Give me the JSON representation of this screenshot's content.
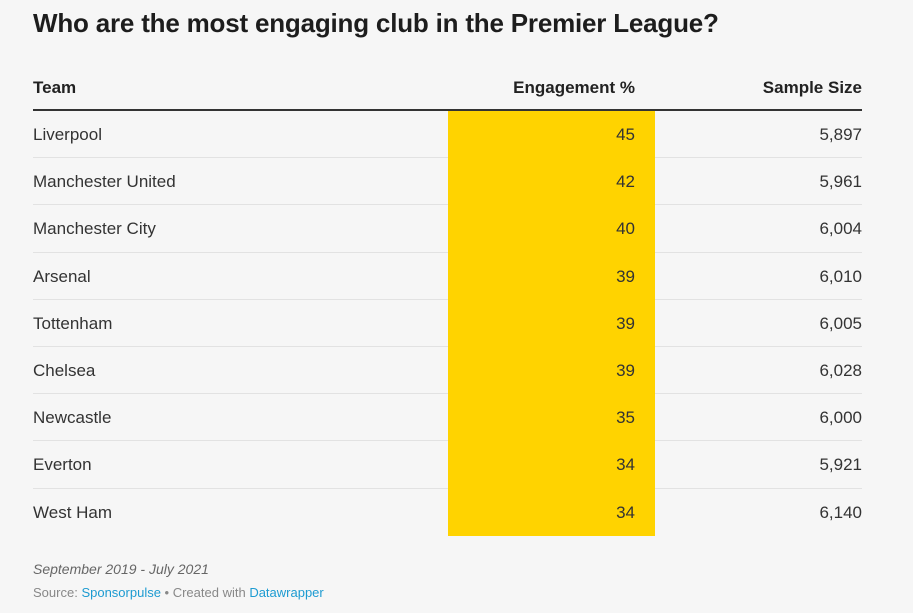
{
  "title": "Who are the most engaging club in the Premier League?",
  "colors": {
    "highlight": "#ffd300",
    "link": "#1d9bd1"
  },
  "chart_data": {
    "type": "table",
    "title": "Who are the most engaging club in the Premier League?",
    "columns": [
      "Team",
      "Engagement %",
      "Sample Size"
    ],
    "rows": [
      {
        "team": "Liverpool",
        "engagement": "45",
        "sample": "5,897"
      },
      {
        "team": "Manchester United",
        "engagement": "42",
        "sample": "5,961"
      },
      {
        "team": "Manchester City",
        "engagement": "40",
        "sample": "6,004"
      },
      {
        "team": "Arsenal",
        "engagement": "39",
        "sample": "6,010"
      },
      {
        "team": "Tottenham",
        "engagement": "39",
        "sample": "6,005"
      },
      {
        "team": "Chelsea",
        "engagement": "39",
        "sample": "6,028"
      },
      {
        "team": "Newcastle",
        "engagement": "35",
        "sample": "6,000"
      },
      {
        "team": "Everton",
        "engagement": "34",
        "sample": "5,921"
      },
      {
        "team": "West Ham",
        "engagement": "34",
        "sample": "6,140"
      }
    ]
  },
  "footer": {
    "notes": "September 2019 - July 2021",
    "source_label": "Source:",
    "source_link": "Sponsorpulse",
    "separator": " • Created with ",
    "created_link": "Datawrapper"
  }
}
